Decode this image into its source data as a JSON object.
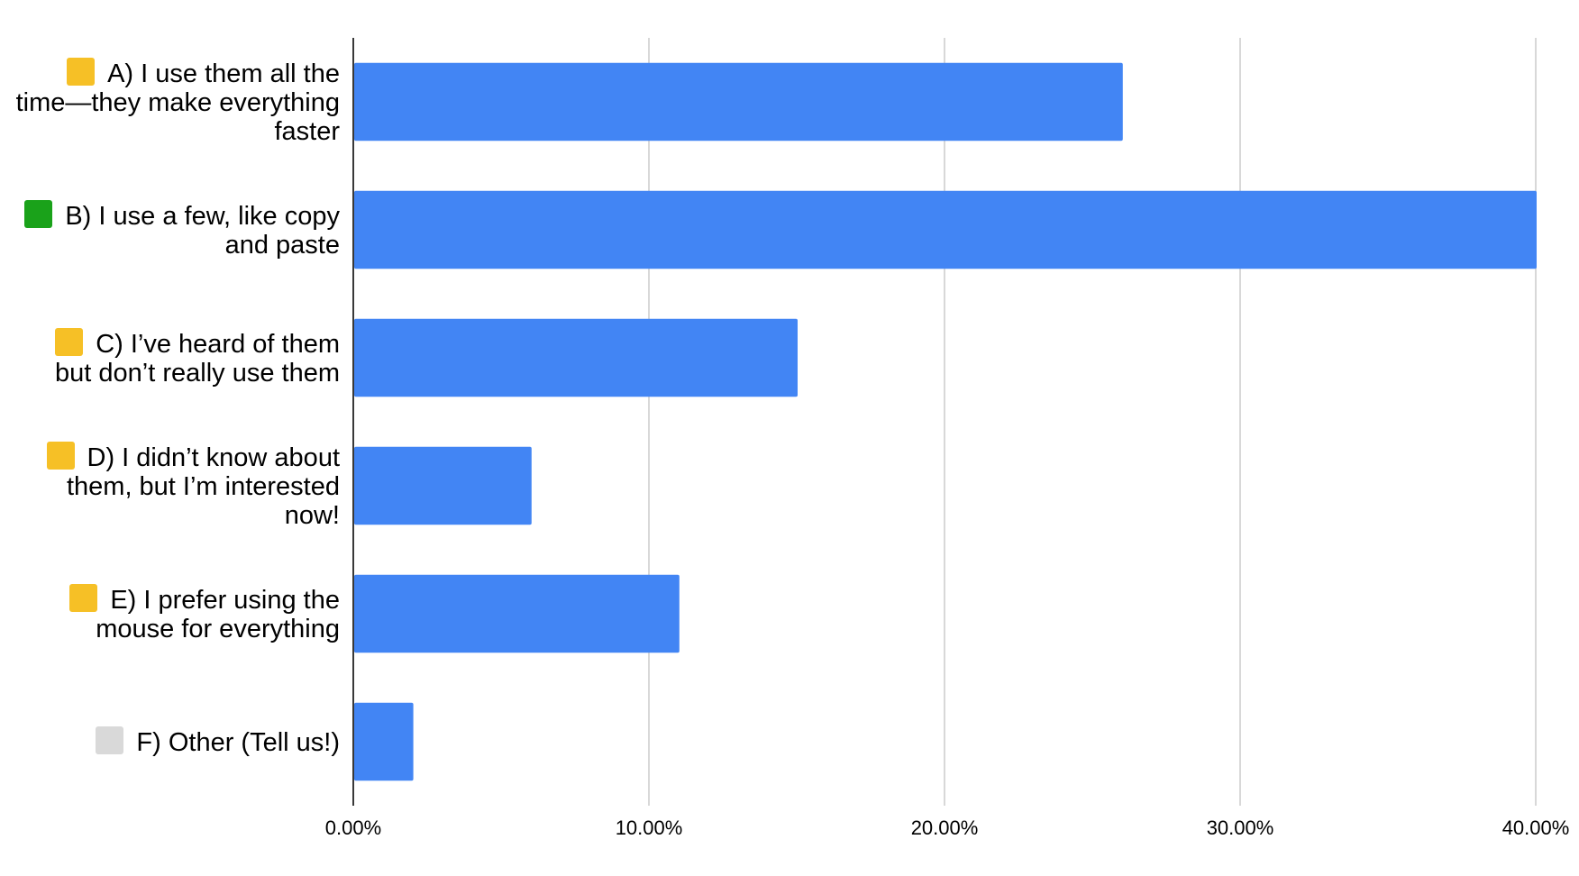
{
  "chart_data": {
    "type": "bar",
    "orientation": "horizontal",
    "categories": [
      "A) I use them all the time—they make everything faster",
      "B) I use a few, like copy and paste",
      "C) I’ve heard of them but don’t really use them",
      "D) I didn’t know about them, but I’m interested now!",
      "E) I prefer using the mouse for everything",
      "F) Other (Tell us!)"
    ],
    "icon_colors": [
      "#f6c026",
      "#1aa21a",
      "#f6c026",
      "#f6c026",
      "#f6c026",
      "#d9d9d9"
    ],
    "values": [
      26,
      40,
      15,
      6,
      11,
      2
    ],
    "color": "#4285f4",
    "xlim": [
      0,
      40
    ],
    "xticks": [
      {
        "value": 0,
        "label": "0.00%"
      },
      {
        "value": 10,
        "label": "10.00%"
      },
      {
        "value": 20,
        "label": "20.00%"
      },
      {
        "value": 30,
        "label": "30.00%"
      },
      {
        "value": 40,
        "label": "40.00%"
      }
    ],
    "grid": true
  }
}
